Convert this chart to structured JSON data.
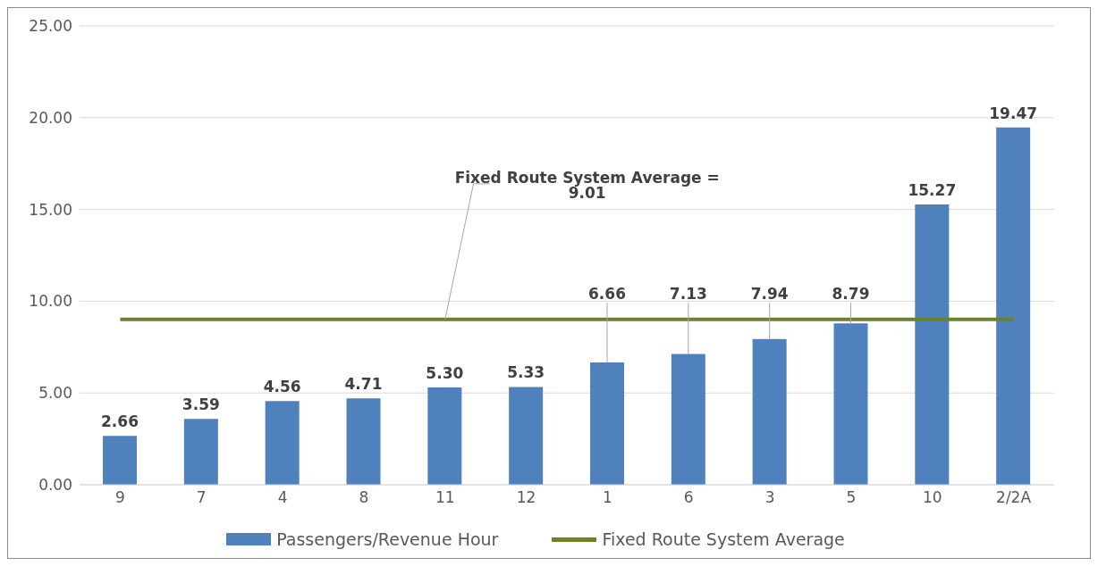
{
  "chart_data": {
    "type": "bar",
    "categories": [
      "9",
      "7",
      "4",
      "8",
      "11",
      "12",
      "1",
      "6",
      "3",
      "5",
      "10",
      "2/2A"
    ],
    "series": [
      {
        "name": "Passengers/Revenue Hour",
        "color": "#4f81bd",
        "values": [
          2.66,
          3.59,
          4.56,
          4.71,
          5.3,
          5.33,
          6.66,
          7.13,
          7.94,
          8.79,
          15.27,
          19.47
        ],
        "value_labels": [
          "2.66",
          "3.59",
          "4.56",
          "4.71",
          "5.30",
          "5.33",
          "6.66",
          "7.13",
          "7.94",
          "8.79",
          "15.27",
          "19.47"
        ]
      },
      {
        "name": "Fixed Route System Average",
        "type": "line",
        "color": "#6b8130",
        "values": [
          9.01,
          9.01,
          9.01,
          9.01,
          9.01,
          9.01,
          9.01,
          9.01,
          9.01,
          9.01,
          9.01,
          9.01
        ]
      }
    ],
    "ylim": [
      0,
      25
    ],
    "yticks": [
      {
        "value": 0,
        "label": "0.00"
      },
      {
        "value": 5,
        "label": "5.00"
      },
      {
        "value": 10,
        "label": "10.00"
      },
      {
        "value": 15,
        "label": "15.00"
      },
      {
        "value": 20,
        "label": "20.00"
      },
      {
        "value": 25,
        "label": "25.00"
      }
    ],
    "grid": "y",
    "legend": "bottom",
    "annotations": [
      {
        "text": "Fixed Route System Average = 9.01",
        "x": "11",
        "y": 9.01
      }
    ]
  }
}
